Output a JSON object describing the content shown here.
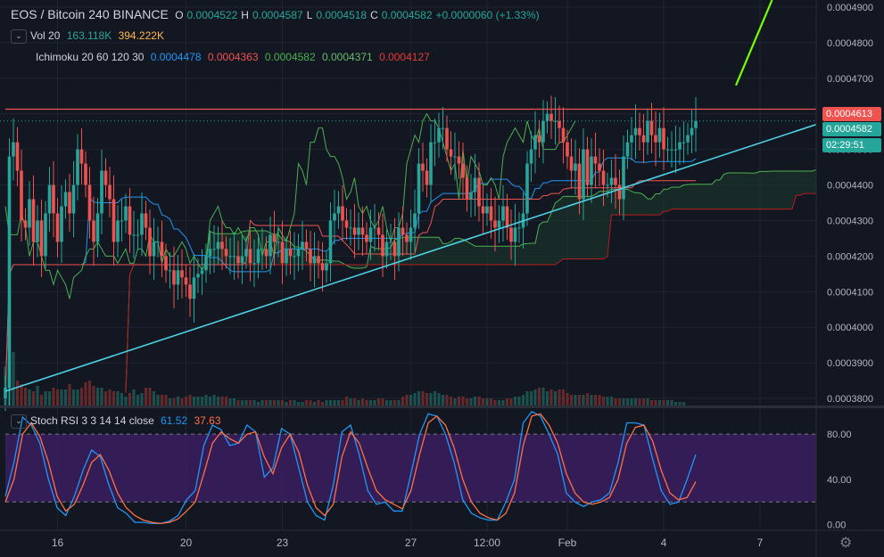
{
  "header": {
    "symbol": "EOS / Bitcoin",
    "interval": "240",
    "exchange": "BINANCE",
    "ohlc": [
      {
        "k": "O",
        "v": "0.0004522"
      },
      {
        "k": "H",
        "v": "0.0004587"
      },
      {
        "k": "L",
        "v": "0.0004518"
      },
      {
        "k": "C",
        "v": "0.0004582"
      }
    ],
    "change": "+0.0000060 (+1.33%)"
  },
  "legends": {
    "vol": {
      "name": "Vol 20",
      "v1": "163.118K",
      "v2": "394.222K"
    },
    "ichimoku": {
      "name": "Ichimoku 20 60 120 30",
      "values": [
        "0.0004478",
        "0.0004363",
        "0.0004582",
        "0.0004371",
        "0.0004127"
      ]
    },
    "stoch": {
      "name": "Stoch RSI 3 3 14 14 close",
      "k": "61.52",
      "d": "37.63"
    }
  },
  "price_tags": {
    "resistance": "0.0004613",
    "last": "0.0004582",
    "countdown": "02:29:51"
  },
  "colors": {
    "up": "#26a69a",
    "down": "#ef5350",
    "tenkan": "#2196f3",
    "kijun": "#ef5350",
    "span_a": "#4caf50",
    "span_b": "#b71c1c",
    "trend": "#4dd0e1",
    "arrow": "#76ff03",
    "stoch_k": "#2196f3",
    "stoch_d": "#ff7043",
    "band": "#3b1f5f"
  },
  "chart_data": [
    {
      "type": "candlestick",
      "title": "EOS / Bitcoin 240 BINANCE",
      "ylim": [
        0.000378,
        0.000492
      ],
      "y_ticks": [
        "0.0004900",
        "0.0004800",
        "0.0004700",
        "0.0004600",
        "0.0004500",
        "0.0004400",
        "0.0004300",
        "0.0004200",
        "0.0004100",
        "0.0004000",
        "0.0003900",
        "0.0003800"
      ],
      "y_tick_values": [
        0.00049,
        0.00048,
        0.00047,
        0.00046,
        0.00045,
        0.00044,
        0.00043,
        0.00042,
        0.00041,
        0.0004,
        0.00039,
        0.00038
      ],
      "x_ticks": [
        {
          "label": "16",
          "i": 13
        },
        {
          "label": "20",
          "i": 45
        },
        {
          "label": "23",
          "i": 69
        },
        {
          "label": "27",
          "i": 101
        },
        {
          "label": "12:00",
          "i": 120
        },
        {
          "label": "Feb",
          "i": 140
        },
        {
          "label": "4",
          "i": 164
        },
        {
          "label": "7",
          "i": 188
        }
      ],
      "x_range": [
        0,
        202
      ],
      "close": [
        0.000383,
        0.000448,
        0.000452,
        0.000444,
        0.00043,
        0.000428,
        0.000436,
        0.000424,
        0.00043,
        0.00042,
        0.000432,
        0.00044,
        0.000432,
        0.000424,
        0.000434,
        0.000438,
        0.000432,
        0.00044,
        0.00045,
        0.000446,
        0.00044,
        0.00043,
        0.000424,
        0.000432,
        0.000444,
        0.00044,
        0.000436,
        0.000424,
        0.00043,
        0.00043,
        0.000434,
        0.000426,
        0.000426,
        0.000426,
        0.000432,
        0.000428,
        0.00042,
        0.000424,
        0.000424,
        0.00042,
        0.000416,
        0.000416,
        0.000412,
        0.000416,
        0.000414,
        0.000412,
        0.000408,
        0.000414,
        0.000415,
        0.000416,
        0.00042,
        0.000422,
        0.000422,
        0.000424,
        0.000422,
        0.00042,
        0.00042,
        0.00042,
        0.000418,
        0.00042,
        0.000422,
        0.000418,
        0.000418,
        0.000422,
        0.000422,
        0.00042,
        0.000426,
        0.000424,
        0.000424,
        0.000418,
        0.000422,
        0.00042,
        0.00042,
        0.000422,
        0.000424,
        0.000422,
        0.000418,
        0.00042,
        0.000418,
        0.000416,
        0.000418,
        0.00043,
        0.000432,
        0.000434,
        0.00043,
        0.000428,
        0.000428,
        0.000426,
        0.000428,
        0.000426,
        0.000424,
        0.000428,
        0.000428,
        0.000426,
        0.00042,
        0.000424,
        0.000424,
        0.00042,
        0.000428,
        0.000426,
        0.000424,
        0.000428,
        0.000432,
        0.000446,
        0.000444,
        0.00044,
        0.000452,
        0.000452,
        0.000456,
        0.000456,
        0.00045,
        0.000448,
        0.000448,
        0.000446,
        0.000442,
        0.000436,
        0.000438,
        0.000442,
        0.000434,
        0.000432,
        0.000434,
        0.00043,
        0.000428,
        0.00043,
        0.000434,
        0.000428,
        0.000424,
        0.000428,
        0.000428,
        0.000432,
        0.000446,
        0.00045,
        0.000454,
        0.000452,
        0.000458,
        0.00046,
        0.000458,
        0.000458,
        0.000456,
        0.000452,
        0.000448,
        0.000444,
        0.000446,
        0.000436,
        0.00045,
        0.00044,
        0.000448,
        0.000446,
        0.000444,
        0.00044,
        0.00044,
        0.000442,
        0.00044,
        0.000436,
        0.000448,
        0.000452,
        0.000454,
        0.000456,
        0.000454,
        0.000452,
        0.000458,
        0.000454,
        0.000452,
        0.000456,
        0.00045,
        0.00045,
        0.00045,
        0.00045,
        0.000452,
        0.000452,
        0.000454,
        0.000456,
        0.000458
      ],
      "resistance": 0.0004613,
      "trendline": [
        {
          "i": 0,
          "price": 0.000382
        },
        {
          "i": 202,
          "price": 0.000457
        }
      ]
    },
    {
      "type": "line",
      "title": "Stoch RSI 3 3 14 14 close",
      "ylim": [
        -5,
        103
      ],
      "y_ticks": [
        "80.00",
        "40.00",
        "0.00"
      ],
      "y_tick_values": [
        80,
        40,
        0
      ],
      "bands": [
        20,
        80
      ],
      "series": [
        {
          "name": "61.52",
          "values": [
            25,
            55,
            95,
            88,
            72,
            40,
            15,
            8,
            25,
            48,
            66,
            60,
            35,
            15,
            10,
            2,
            2,
            1,
            1,
            3,
            8,
            22,
            30,
            70,
            88,
            84,
            70,
            72,
            88,
            82,
            42,
            50,
            85,
            80,
            50,
            20,
            8,
            4,
            35,
            82,
            88,
            62,
            30,
            18,
            20,
            12,
            12,
            45,
            80,
            98,
            96,
            80,
            55,
            22,
            10,
            6,
            4,
            4,
            20,
            40,
            90,
            100,
            96,
            80,
            62,
            28,
            20,
            16,
            20,
            22,
            28,
            55,
            90,
            90,
            88,
            58,
            30,
            18,
            20,
            40,
            62
          ]
        },
        {
          "name": "37.63",
          "values": [
            20,
            40,
            80,
            90,
            78,
            55,
            25,
            12,
            18,
            35,
            55,
            62,
            48,
            28,
            15,
            8,
            4,
            2,
            1,
            2,
            5,
            12,
            20,
            45,
            72,
            82,
            76,
            72,
            80,
            82,
            60,
            45,
            68,
            80,
            64,
            35,
            15,
            8,
            18,
            60,
            82,
            72,
            50,
            30,
            22,
            18,
            14,
            30,
            62,
            90,
            96,
            88,
            68,
            40,
            20,
            10,
            6,
            4,
            10,
            28,
            70,
            96,
            98,
            88,
            72,
            45,
            28,
            20,
            18,
            20,
            24,
            40,
            72,
            86,
            88,
            74,
            48,
            28,
            22,
            24,
            38
          ]
        }
      ]
    },
    {
      "type": "bar",
      "title": "Vol 20",
      "values": [
        22,
        28,
        30,
        14,
        12,
        10,
        9,
        8,
        11,
        6,
        8,
        8,
        10,
        9,
        9,
        9,
        12,
        9,
        9,
        10,
        13,
        14,
        11,
        10,
        10,
        8,
        9,
        8,
        8,
        7,
        5,
        7,
        9,
        6,
        7,
        10,
        10,
        8,
        6,
        6,
        6,
        4,
        4,
        5,
        4,
        5,
        6,
        5,
        5,
        5,
        6,
        5,
        6,
        5,
        5,
        5,
        4,
        4,
        3,
        3,
        3,
        3,
        3,
        2,
        3,
        3,
        3,
        3,
        3,
        3,
        2,
        3,
        3,
        2,
        2,
        3,
        3,
        2,
        3,
        2,
        3,
        3,
        3,
        3,
        3,
        5,
        4,
        4,
        3,
        4,
        3,
        3,
        3,
        4,
        4,
        3,
        3,
        3,
        3,
        5,
        6,
        6,
        7,
        8,
        8,
        7,
        7,
        8,
        7,
        6,
        6,
        5,
        4,
        5,
        5,
        4,
        4,
        5,
        5,
        4,
        4,
        4,
        3,
        3,
        3,
        4,
        4,
        5,
        5,
        6,
        8,
        8,
        9,
        10,
        10,
        8,
        9,
        8,
        9,
        9,
        7,
        6,
        6,
        6,
        6,
        7,
        6,
        6,
        6,
        5,
        5,
        5,
        4,
        4,
        4,
        4,
        4,
        4,
        4,
        4,
        4,
        3,
        3,
        3,
        3,
        3,
        3,
        2,
        2,
        2
      ]
    }
  ]
}
